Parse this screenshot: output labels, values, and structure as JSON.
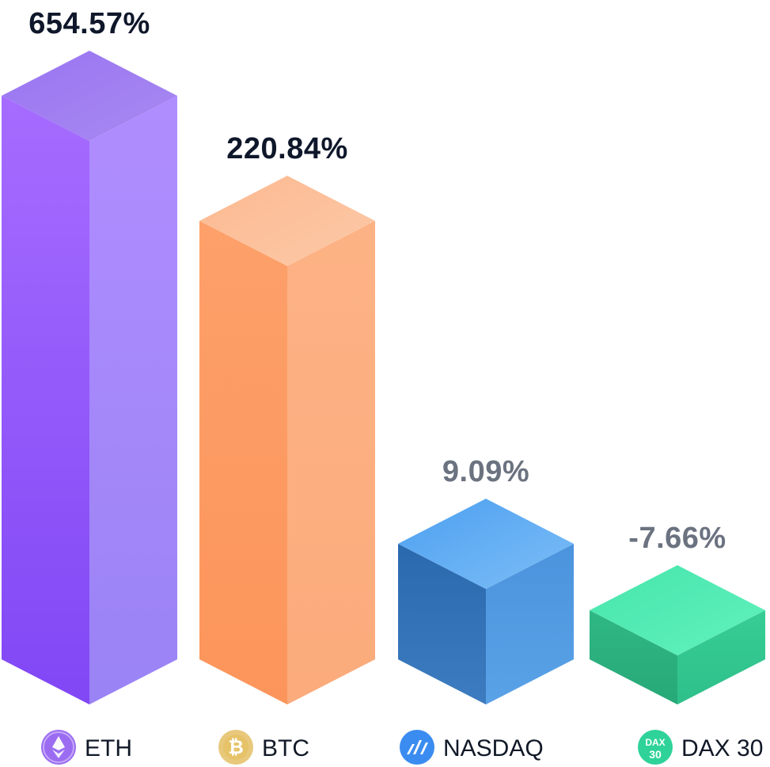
{
  "chart_data": {
    "type": "bar",
    "title": "",
    "xlabel": "",
    "ylabel": "",
    "categories": [
      "ETH",
      "BTC",
      "NASDAQ",
      "DAX 30"
    ],
    "values": [
      654.57,
      220.84,
      9.09,
      -7.66
    ],
    "value_labels": [
      "654.57%",
      "220.84%",
      "9.09%",
      "-7.66%"
    ],
    "grid": false,
    "legend_position": "bottom"
  },
  "bars": [
    {
      "category": "ETH",
      "label": "654.57%",
      "label_color": "#0f172a",
      "front_top": "#a66cff",
      "front_bottom": "#8147f5",
      "side_top": "#b08dff",
      "side_bottom": "#9a83f5",
      "top_a": "#9a74f2",
      "top_b": "#a78af0",
      "icon": "ethereum-icon",
      "icon_bg": "#9b6cf2"
    },
    {
      "category": "BTC",
      "label": "220.84%",
      "label_color": "#0f172a",
      "front_top": "#fda06a",
      "front_bottom": "#fc955b",
      "side_top": "#fdb285",
      "side_bottom": "#fbab7c",
      "top_a": "#fbb990",
      "top_b": "#fdc9a8",
      "icon": "bitcoin-icon",
      "icon_bg": "#e8c97c"
    },
    {
      "category": "NASDAQ",
      "label": "9.09%",
      "label_color": "#6b7280",
      "front_top": "#2a69ad",
      "front_bottom": "#3d7cc0",
      "side_top": "#4b94dd",
      "side_bottom": "#5aa2e7",
      "top_a": "#4d9ff0",
      "top_b": "#7cbef7",
      "icon": "nasdaq-icon",
      "icon_bg": "#3b8cf0"
    },
    {
      "category": "DAX 30",
      "label": "-7.66%",
      "label_color": "#6b7280",
      "front_top": "#2fb884",
      "front_bottom": "#27a877",
      "side_top": "#37cd95",
      "side_bottom": "#2fc08a",
      "top_a": "#46e5ac",
      "top_b": "#62f1bd",
      "icon": "dax-30-icon",
      "icon_bg": "#2fd39a",
      "icon_text": [
        "DAX",
        "30"
      ]
    }
  ]
}
